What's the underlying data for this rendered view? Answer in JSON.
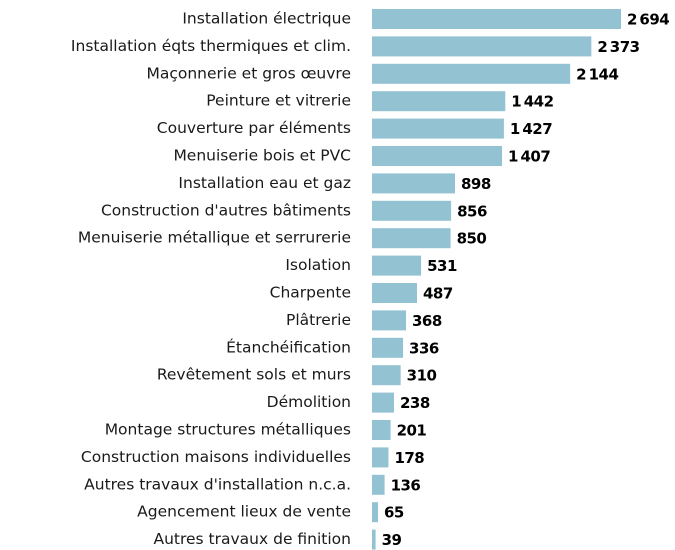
{
  "chart_data": {
    "type": "bar",
    "orientation": "horizontal",
    "color": "#93c2d2",
    "categories": [
      "Installation électrique",
      "Installation éqts thermiques et clim.",
      "Maçonnerie et gros œuvre",
      "Peinture et vitrerie",
      "Couverture par éléments",
      "Menuiserie bois et PVC",
      "Installation eau et gaz",
      "Construction d'autres bâtiments",
      "Menuiserie métallique et serrurerie",
      "Isolation",
      "Charpente",
      "Plâtrerie",
      "Étanchéification",
      "Revêtement sols et murs",
      "Démolition",
      "Montage structures métalliques",
      "Construction maisons individuelles",
      "Autres travaux d'installation n.c.a.",
      "Agencement lieux de vente",
      "Autres travaux de finition"
    ],
    "values": [
      2694,
      2373,
      2144,
      1442,
      1427,
      1407,
      898,
      856,
      850,
      531,
      487,
      368,
      336,
      310,
      238,
      201,
      178,
      136,
      65,
      39
    ],
    "value_labels": [
      "2 694",
      "2 373",
      "2 144",
      "1 442",
      "1 427",
      "1 407",
      "898",
      "856",
      "850",
      "531",
      "487",
      "368",
      "336",
      "310",
      "238",
      "201",
      "178",
      "136",
      "65",
      "39"
    ]
  }
}
